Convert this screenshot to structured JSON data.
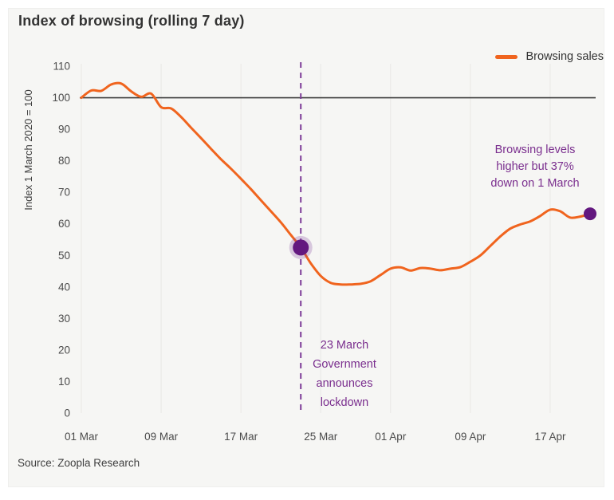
{
  "title": "Index of browsing (rolling 7 day)",
  "legend": {
    "label": "Browsing sales"
  },
  "source": "Source: Zoopla Research",
  "annotations": {
    "browsing_levels": "Browsing levels\nhigher but 37%\ndown on 1 March",
    "lockdown": "23 March\nGovernment\nannounces\nlockdown"
  },
  "colors": {
    "line": "#f0641e",
    "purple": "#7d3c98",
    "purple_text": "#7a2e8e",
    "dot": "#63187f",
    "halo": "#7d3c98",
    "reference": "#3d3d3d",
    "grid": "#e9e8e5",
    "tick_text": "#4b4b4b",
    "card_bg": "#f6f6f4"
  },
  "chart_data": {
    "type": "line",
    "title": "Index of browsing (rolling 7 day)",
    "xlabel": "",
    "ylabel": "Index 1 March 2020 = 100",
    "ylim": [
      0,
      110
    ],
    "yticks": [
      110,
      100,
      90,
      80,
      70,
      60,
      50,
      40,
      30,
      20,
      10,
      0
    ],
    "xtick_labels": [
      "01 Mar",
      "09 Mar",
      "17 Mar",
      "25 Mar",
      "01 Apr",
      "09 Apr",
      "17 Apr"
    ],
    "xtick_days": [
      0,
      8,
      16,
      24,
      31,
      39,
      47
    ],
    "grid": "vertical-only",
    "legend_position": "top-right",
    "reference_line_y": 100,
    "vline": {
      "day": 22,
      "date": "23 Mar",
      "label": "23 March Government announces lockdown"
    },
    "markers": [
      {
        "day": 22,
        "date": "23 Mar",
        "value": 52.5,
        "halo": true
      },
      {
        "day": 51,
        "date": "21 Apr",
        "value": 63.2,
        "halo": false
      }
    ],
    "series": [
      {
        "name": "Browsing sales",
        "dates": [
          "01 Mar",
          "02 Mar",
          "03 Mar",
          "04 Mar",
          "05 Mar",
          "06 Mar",
          "07 Mar",
          "08 Mar",
          "09 Mar",
          "10 Mar",
          "11 Mar",
          "12 Mar",
          "13 Mar",
          "14 Mar",
          "15 Mar",
          "16 Mar",
          "17 Mar",
          "18 Mar",
          "19 Mar",
          "20 Mar",
          "21 Mar",
          "22 Mar",
          "23 Mar",
          "24 Mar",
          "25 Mar",
          "26 Mar",
          "27 Mar",
          "28 Mar",
          "29 Mar",
          "30 Mar",
          "31 Mar",
          "01 Apr",
          "02 Apr",
          "03 Apr",
          "04 Apr",
          "05 Apr",
          "06 Apr",
          "07 Apr",
          "08 Apr",
          "09 Apr",
          "10 Apr",
          "11 Apr",
          "12 Apr",
          "13 Apr",
          "14 Apr",
          "15 Apr",
          "16 Apr",
          "17 Apr",
          "18 Apr",
          "19 Apr",
          "20 Apr",
          "21 Apr"
        ],
        "values": [
          100,
          102.3,
          102.2,
          104.2,
          104.5,
          102,
          100.3,
          101.3,
          97,
          96.6,
          93.9,
          90.5,
          87.2,
          83.8,
          80.5,
          77.5,
          74.3,
          71,
          67.5,
          64,
          60.5,
          56.5,
          52.5,
          47.5,
          43.5,
          41.3,
          40.8,
          40.8,
          41,
          41.8,
          43.8,
          45.8,
          46.2,
          45.2,
          46,
          45.8,
          45.3,
          45.8,
          46.3,
          48,
          50,
          53,
          56,
          58.5,
          59.8,
          60.8,
          62.5,
          64.5,
          64,
          62,
          62.3,
          63.2
        ]
      }
    ]
  }
}
